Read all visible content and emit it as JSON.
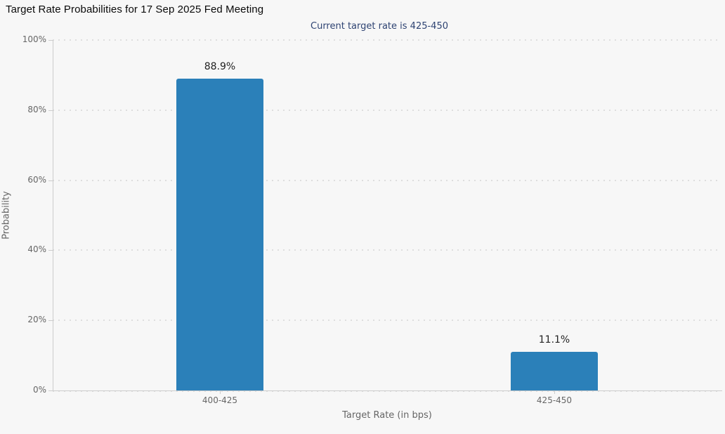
{
  "header": {
    "title": "Target Rate Probabilities for 17 Sep 2025 Fed Meeting",
    "subtitle": "Current target rate is 425-450"
  },
  "chart_data": {
    "type": "bar",
    "title": "Target Rate Probabilities for 17 Sep 2025 Fed Meeting",
    "subtitle": "Current target rate is 425-450",
    "categories": [
      "400-425",
      "425-450"
    ],
    "values": [
      88.9,
      11.1
    ],
    "value_labels": [
      "88.9%",
      "11.1%"
    ],
    "xlabel": "Target Rate (in bps)",
    "ylabel": "Probability",
    "ylim": [
      0,
      100
    ],
    "yticks": [
      0,
      20,
      40,
      60,
      80,
      100
    ],
    "ytick_labels": [
      "0%",
      "20%",
      "40%",
      "60%",
      "80%",
      "100%"
    ],
    "grid": "horizontal-dotted",
    "legend": "none",
    "bar_color": "#2b80b9"
  },
  "colors": {
    "background": "#f7f7f7",
    "bar": "#2b80b9",
    "subtitle_text": "#2e4372",
    "axis_text": "#666666",
    "grid_line": "#dedede",
    "axis_line": "#cccccc",
    "title_text": "#0a0a0a",
    "value_label_text": "#222222"
  }
}
